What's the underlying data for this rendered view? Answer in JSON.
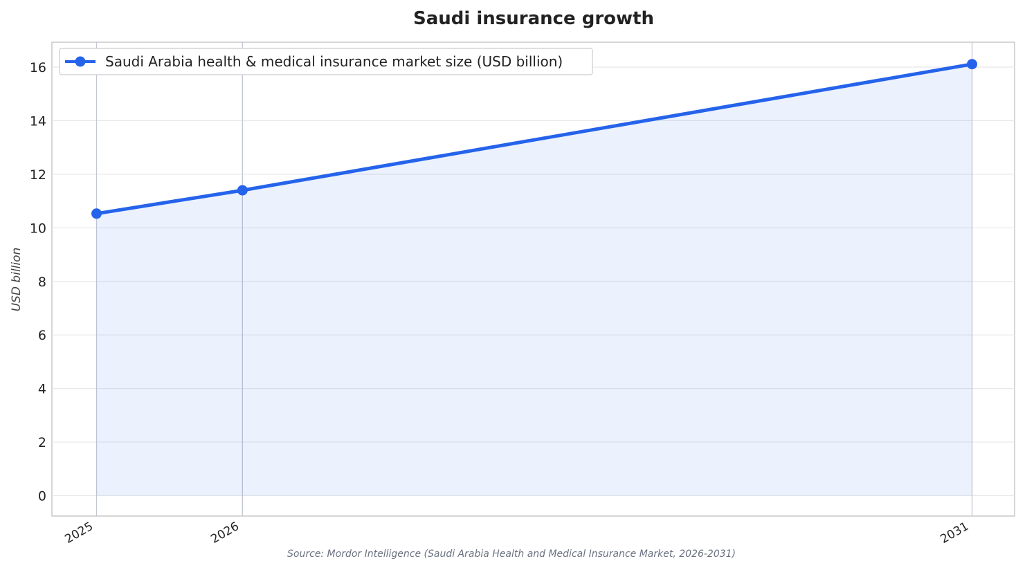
{
  "chart_data": {
    "type": "area",
    "title": "Saudi insurance growth",
    "xlabel": "",
    "ylabel": "USD billion",
    "x": [
      "2025",
      "2026",
      "2031"
    ],
    "x_numeric": [
      2025,
      2026,
      2031
    ],
    "series": [
      {
        "name": "Saudi Arabia health & medical insurance market size (USD billion)",
        "values": [
          10.53,
          11.4,
          16.11
        ],
        "color": "#2563eb"
      }
    ],
    "yticks": [
      0,
      2,
      4,
      6,
      8,
      10,
      12,
      14,
      16
    ],
    "ylim": [
      -0.75,
      16.9
    ],
    "grid": true,
    "legend": "top-left",
    "source": "Source: Mordor Intelligence (Saudi Arabia Health and Medical Insurance Market, 2026-2031)"
  }
}
